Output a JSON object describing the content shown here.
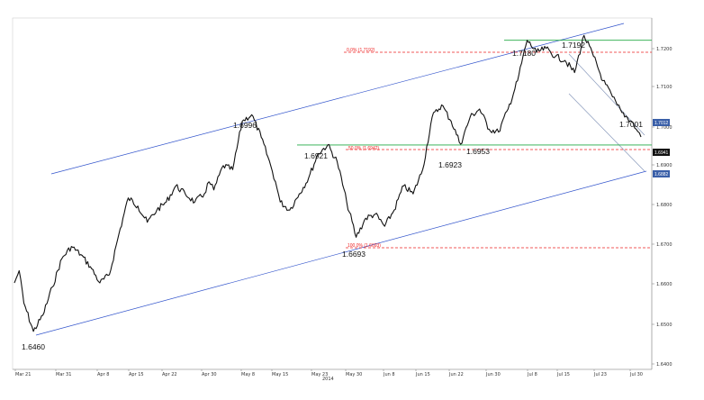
{
  "chart_data": {
    "type": "line",
    "title": "",
    "xlabel": "",
    "ylabel": "",
    "year_label": "2014",
    "x_tick_labels": [
      "Mar 21",
      "Mar 31",
      "Apr 8",
      "Apr 15",
      "Apr 22",
      "Apr 30",
      "May 8",
      "May 15",
      "May 23",
      "May 30",
      "Jun 8",
      "Jun 15",
      "Jun 22",
      "Jun 30",
      "Jul 8",
      "Jul 15",
      "Jul 23",
      "Jul 30"
    ],
    "y_tick_labels": [
      "1.6400",
      "1.6500",
      "1.6600",
      "1.6700",
      "1.6800",
      "1.6900",
      "1.7000",
      "1.7100",
      "1.7200"
    ],
    "ylim": [
      1.6375,
      1.7235
    ],
    "grid": false,
    "series": [
      {
        "x": [
          0,
          1,
          2,
          4,
          6,
          8,
          10,
          12,
          14,
          16,
          18,
          20,
          22,
          24,
          26,
          28,
          30,
          32,
          34,
          36,
          38,
          40,
          41,
          42,
          44,
          46,
          48,
          50,
          52,
          54,
          55,
          56,
          58,
          60,
          62,
          64,
          66,
          68,
          70,
          72,
          74,
          76,
          78,
          80,
          82,
          84,
          86,
          88,
          90,
          92,
          94,
          96,
          98,
          100,
          102,
          104,
          106,
          108,
          110,
          112,
          114,
          116,
          118,
          120,
          122,
          124,
          126,
          127,
          128,
          130,
          131,
          132
        ],
        "values": [
          1.658,
          1.661,
          1.653,
          1.646,
          1.65,
          1.657,
          1.664,
          1.667,
          1.665,
          1.662,
          1.658,
          1.66,
          1.67,
          1.679,
          1.677,
          1.673,
          1.676,
          1.678,
          1.682,
          1.68,
          1.678,
          1.68,
          1.683,
          1.681,
          1.687,
          1.686,
          1.698,
          1.6996,
          1.694,
          1.687,
          1.683,
          1.678,
          1.676,
          1.68,
          1.684,
          1.69,
          1.6921,
          1.688,
          1.678,
          1.6693,
          1.674,
          1.675,
          1.672,
          1.676,
          1.682,
          1.68,
          1.686,
          1.699,
          1.702,
          1.698,
          1.6923,
          1.699,
          1.701,
          1.696,
          1.6953,
          1.701,
          1.708,
          1.718,
          1.715,
          1.716,
          1.714,
          1.713,
          1.71,
          1.7192,
          1.714,
          1.708,
          1.704,
          1.702,
          1.7001,
          1.698,
          1.696,
          1.6941
        ]
      }
    ],
    "price_labels": [
      "1.6460",
      "1.6996",
      "1.6921",
      "1.6693",
      "1.6923",
      "1.6953",
      "1.7180",
      "1.7192",
      "1.7001"
    ],
    "fib_labels": [
      "0.0% (1.7192)",
      "50.0% (1.6942)",
      "100.0% (1.6693)"
    ],
    "price_tags": [
      "1.7012",
      "1.6941",
      "1.6882"
    ],
    "horizontal_levels": [
      1.6921,
      1.718
    ],
    "colors": {
      "price": "#111111",
      "channel": "#3355cc",
      "fib": "#ee2222",
      "support": "#22aa44",
      "descending_channel": "#8899bb",
      "tag_blue": "#3a5fa8",
      "tag_black": "#111111"
    }
  }
}
